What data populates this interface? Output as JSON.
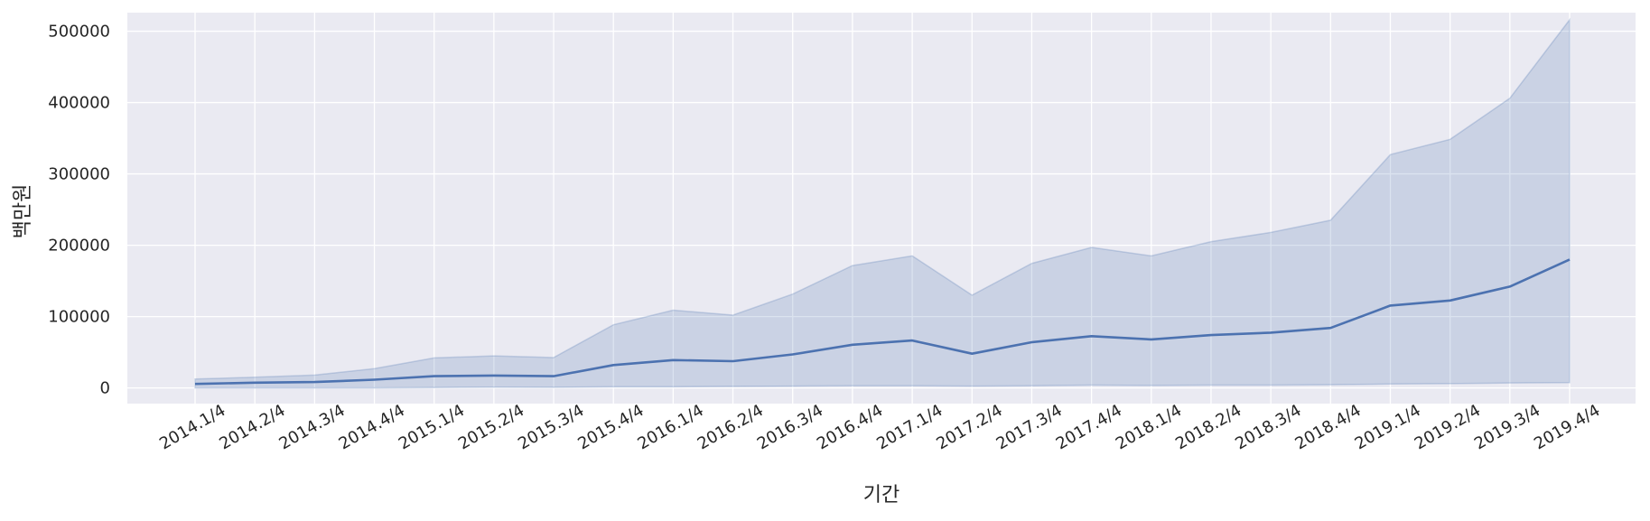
{
  "chart_data": {
    "type": "line",
    "title": "",
    "xlabel": "기간",
    "ylabel": "백만원",
    "grid": true,
    "legend": "none",
    "ylim": [
      -22000,
      526000
    ],
    "yticks": [
      0,
      100000,
      200000,
      300000,
      400000,
      500000
    ],
    "ytick_labels": [
      "0",
      "100000",
      "200000",
      "300000",
      "400000",
      "500000"
    ],
    "categories": [
      "2014.1/4",
      "2014.2/4",
      "2014.3/4",
      "2014.4/4",
      "2015.1/4",
      "2015.2/4",
      "2015.3/4",
      "2015.4/4",
      "2016.1/4",
      "2016.2/4",
      "2016.3/4",
      "2016.4/4",
      "2017.1/4",
      "2017.2/4",
      "2017.3/4",
      "2017.4/4",
      "2018.1/4",
      "2018.2/4",
      "2018.3/4",
      "2018.4/4",
      "2019.1/4",
      "2019.2/4",
      "2019.3/4",
      "2019.4/4"
    ],
    "series": [
      {
        "values": [
          5600,
          7300,
          8300,
          11500,
          16500,
          17300,
          16500,
          32000,
          39000,
          37500,
          47000,
          60500,
          66500,
          48000,
          64000,
          72500,
          68000,
          74000,
          77500,
          84000,
          115500,
          122500,
          142000,
          180000
        ],
        "ci_upper": [
          12500,
          15000,
          18000,
          27000,
          42000,
          45000,
          42500,
          88500,
          109000,
          102000,
          131500,
          171500,
          185000,
          130000,
          174500,
          197000,
          185000,
          205000,
          218000,
          235000,
          327000,
          348500,
          406000,
          516000
        ],
        "ci_lower": [
          0,
          0,
          0,
          0,
          500,
          1000,
          800,
          1500,
          1500,
          2000,
          2500,
          3000,
          3000,
          2500,
          3000,
          4000,
          3500,
          4000,
          4000,
          4500,
          5500,
          6000,
          7000,
          7500
        ]
      }
    ],
    "colors": {
      "line": "#4c72b0",
      "band": "#4c72b0",
      "background": "#eaeaf2",
      "grid": "#ffffff"
    }
  }
}
